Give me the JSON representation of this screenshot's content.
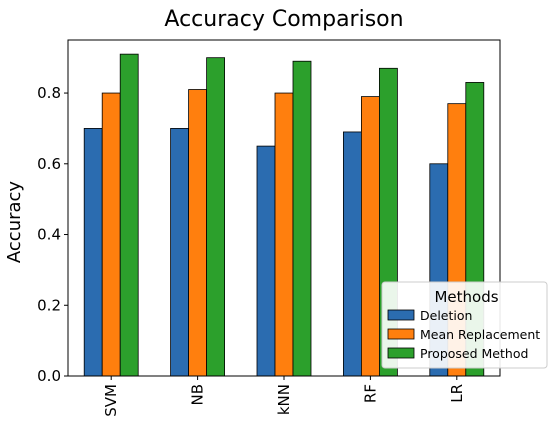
{
  "chart_data": {
    "type": "bar",
    "title": "Accuracy Comparison",
    "xlabel": "",
    "ylabel": "Accuracy",
    "categories": [
      "SVM",
      "NB",
      "kNN",
      "RF",
      "LR"
    ],
    "series": [
      {
        "name": "Deletion",
        "values": [
          0.7,
          0.7,
          0.65,
          0.69,
          0.6
        ],
        "color": "#2b6cb0"
      },
      {
        "name": "Mean Replacement",
        "values": [
          0.8,
          0.81,
          0.8,
          0.79,
          0.77
        ],
        "color": "#ff7f0e"
      },
      {
        "name": "Proposed Method",
        "values": [
          0.91,
          0.9,
          0.89,
          0.87,
          0.83
        ],
        "color": "#2ca02c"
      }
    ],
    "ylim": [
      0,
      0.95
    ],
    "yticks": [
      0.0,
      0.2,
      0.4,
      0.6,
      0.8
    ],
    "ytick_labels": [
      "0.0",
      "0.2",
      "0.4",
      "0.6",
      "0.8"
    ],
    "grid": false,
    "legend": {
      "title": "Methods",
      "placement": "lower-right"
    }
  }
}
